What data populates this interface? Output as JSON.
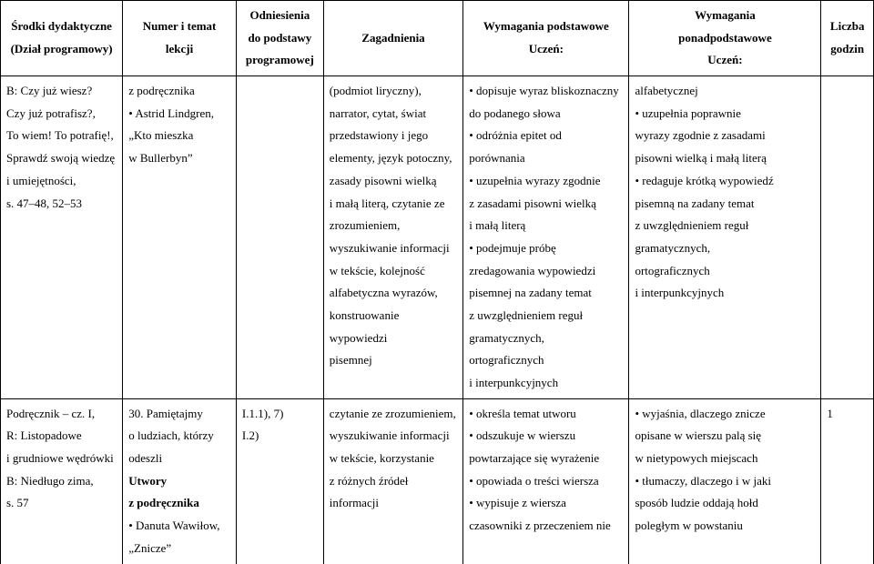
{
  "table": {
    "headers": {
      "col1": "Środki dydaktyczne\n(Dział programowy)",
      "col2": "Numer i temat\nlekcji",
      "col3": "Odniesienia\ndo podstawy\nprogramowej",
      "col4": "Zagadnienia",
      "col5": "Wymagania podstawowe\nUczeń:",
      "col6": "Wymagania\nponadpodstawowe\nUczeń:",
      "col7": "Liczba\ngodzin"
    },
    "row1": {
      "col1": "B: Czy już wiesz?\nCzy już potrafisz?,\nTo wiem! To potrafię!,\nSprawdź swoją wiedzę\ni umiejętności,\ns. 47–48, 52–53",
      "col2": "z podręcznika\n• Astrid Lindgren,\n„Kto mieszka\nw Bullerbyn”",
      "col3": "",
      "col4": "(podmiot liryczny),\nnarrator, cytat, świat\nprzedstawiony i jego\nelementy, język potoczny,\nzasady pisowni wielką\ni małą literą, czytanie ze\nzrozumieniem,\nwyszukiwanie informacji\nw tekście, kolejność\nalfabetyczna wyrazów,\nkonstruowanie wypowiedzi\npisemnej",
      "col5": "• dopisuje wyraz bliskoznaczny\ndo podanego słowa\n• odróżnia epitet od\nporównania\n• uzupełnia wyrazy zgodnie\nz zasadami pisowni wielką\ni małą literą\n• podejmuje próbę\nzredagowania wypowiedzi\npisemnej na zadany temat\nz uwzględnieniem reguł\ngramatycznych,\nortograficznych\ni interpunkcyjnych",
      "col6": "alfabetycznej\n• uzupełnia poprawnie\nwyrazy zgodnie z zasadami\npisowni wielką i małą literą\n• redaguje krótką wypowiedź\npisemną na zadany temat\nz uwzględnieniem reguł\ngramatycznych,\nortograficznych\ni interpunkcyjnych",
      "col7": ""
    },
    "row2": {
      "col1": "Podręcznik – cz. I,\nR: Listopadowe\ni grudniowe wędrówki\nB: Niedługo zima,\ns. 57",
      "col2_pre": "30. Pamiętajmy\no ludziach, którzy\nodeszli",
      "col2_bold": "Utwory\nz podręcznika",
      "col2_post": "• Danuta Wawiłow,\n„Znicze”",
      "col3": "I.1.1), 7)\nI.2)",
      "col4": "czytanie ze zrozumieniem,\nwyszukiwanie informacji\nw tekście, korzystanie\nz różnych źródeł informacji",
      "col5": "• określa temat utworu\n• odszukuje w wierszu\npowtarzające się wyrażenie\n• opowiada o treści wiersza\n• wypisuje z wiersza\nczasowniki z przeczeniem nie",
      "col6": "• wyjaśnia, dlaczego znicze\nopisane w wierszu palą się\nw nietypowych miejscach\n • tłumaczy, dlaczego i w jaki\nsposób ludzie oddają hołd\npoległym w powstaniu",
      "col7": "1"
    }
  }
}
